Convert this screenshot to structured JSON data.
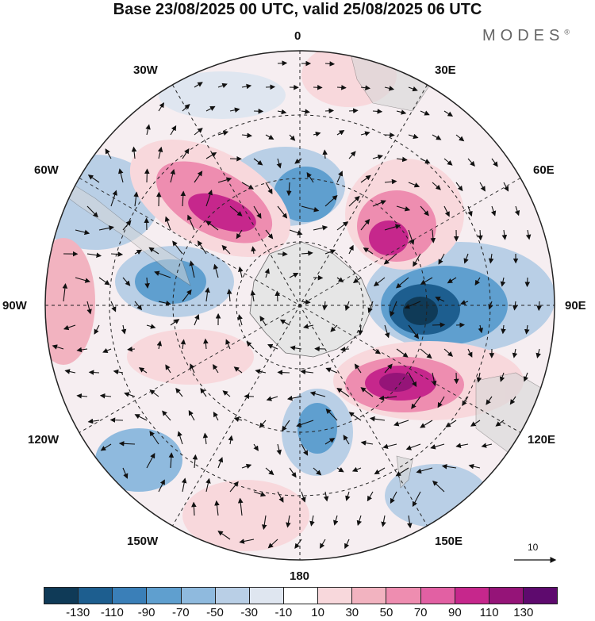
{
  "title": "Base 23/08/2025 00 UTC, valid 25/08/2025 06 UTC",
  "brand": {
    "name": "MODES",
    "mark": "®"
  },
  "longitude_labels": {
    "lon_0": "0",
    "lon_30e": "30E",
    "lon_60e": "60E",
    "lon_90e": "90E",
    "lon_120e": "120E",
    "lon_150e": "150E",
    "lon_180": "180",
    "lon_150w": "150W",
    "lon_120w": "120W",
    "lon_90w": "90W",
    "lon_60w": "60W",
    "lon_30w": "30W"
  },
  "reference_vector": "10",
  "colorbar": {
    "colors": [
      "#0f3a57",
      "#1d5e8f",
      "#3a7fb8",
      "#5f9fcf",
      "#8fbade",
      "#b9cfe6",
      "#dfe6f0",
      "#ffffff",
      "#f8d8dc",
      "#f2b3c0",
      "#ee8db0",
      "#e260a3",
      "#c6278c",
      "#951478",
      "#5e0a6e"
    ],
    "ticks": [
      "-130",
      "-110",
      "-90",
      "-70",
      "-50",
      "-30",
      "-10",
      "10",
      "30",
      "50",
      "70",
      "90",
      "110",
      "130"
    ]
  }
}
